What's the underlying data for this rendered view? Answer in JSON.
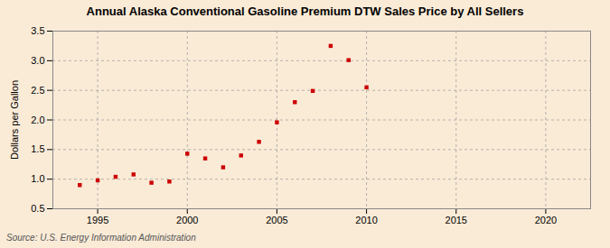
{
  "chart_data": {
    "type": "scatter",
    "title": "Annual Alaska Conventional Gasoline Premium DTW Sales Price by All Sellers",
    "ylabel": "Dollars per Gallon",
    "source": "Source: U.S. Energy Information Administration",
    "x": [
      1994,
      1995,
      1996,
      1997,
      1998,
      1999,
      2000,
      2001,
      2002,
      2003,
      2004,
      2005,
      2006,
      2007,
      2008,
      2009,
      2010
    ],
    "values": [
      0.9,
      0.98,
      1.04,
      1.08,
      0.94,
      0.96,
      1.43,
      1.35,
      1.2,
      1.4,
      1.63,
      1.96,
      2.3,
      2.49,
      3.25,
      3.01,
      2.55
    ],
    "color": "#cc0000",
    "marker": "square",
    "xlim": [
      1992.5,
      2022.5
    ],
    "ylim": [
      0.5,
      3.5
    ],
    "xticks": [
      1995,
      2000,
      2005,
      2010,
      2015,
      2020
    ],
    "yticks": [
      0.5,
      {
        "value": 1.0,
        "label": "1.0"
      },
      1.5,
      {
        "value": 2.0,
        "label": "2.0"
      },
      2.5,
      {
        "value": 3.0,
        "label": "3.0"
      },
      3.5
    ],
    "grid": true
  }
}
